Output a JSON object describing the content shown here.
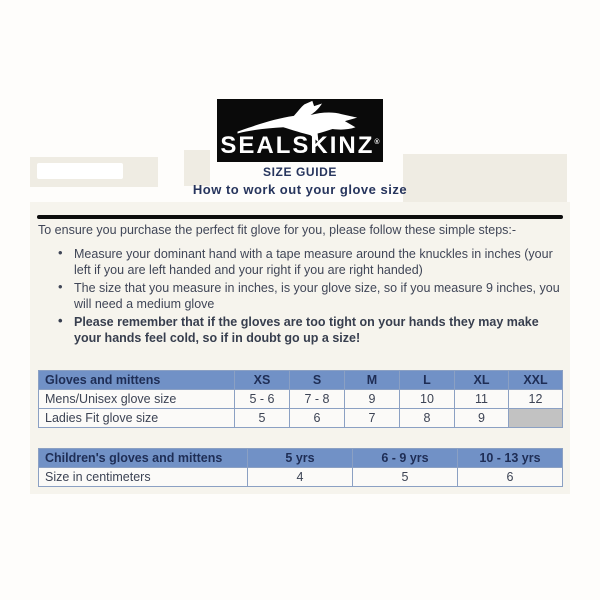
{
  "logo": {
    "brand": "SEALSKINZ",
    "trademark": "®",
    "icon": "seal-silhouette-icon",
    "bg_color": "#0a0a0a",
    "text_color": "#ffffff"
  },
  "header": {
    "title": "SIZE GUIDE",
    "subtitle": "How to work out your glove size"
  },
  "intro": "To ensure you purchase the perfect fit glove for you, please follow these simple steps:-",
  "steps": [
    {
      "text": "Measure your dominant hand with a tape measure around the knuckles in inches (your left if you are left handed and your right if you are right handed)",
      "bold": false
    },
    {
      "text": "The size that you measure in inches, is your glove size, so if you measure 9 inches, you will need a medium glove",
      "bold": false
    },
    {
      "text": "Please remember that if the gloves are too tight on your hands they may make your hands feel cold, so if in doubt go up a size!",
      "bold": true
    }
  ],
  "adult_table": {
    "header": [
      "Gloves and mittens",
      "XS",
      "S",
      "M",
      "L",
      "XL",
      "XXL"
    ],
    "rows": [
      {
        "label": "Mens/Unisex glove size",
        "values": [
          "5 - 6",
          "7 - 8",
          "9",
          "10",
          "11",
          "12"
        ]
      },
      {
        "label": "Ladies Fit glove size",
        "values": [
          "5",
          "6",
          "7",
          "8",
          "9",
          ""
        ]
      }
    ]
  },
  "children_table": {
    "header": [
      "Children's gloves and mittens",
      "5 yrs",
      "6 - 9 yrs",
      "10 - 13 yrs"
    ],
    "rows": [
      {
        "label": "Size in centimeters",
        "values": [
          "4",
          "5",
          "6"
        ]
      }
    ]
  },
  "colors": {
    "table_header_bg": "#7191c6",
    "table_border": "#8ba0c3",
    "table_header_text": "#1e2d55",
    "body_text": "#404657",
    "empty_cell_bg": "#c2c2c2",
    "divider": "#0d0d0d"
  }
}
